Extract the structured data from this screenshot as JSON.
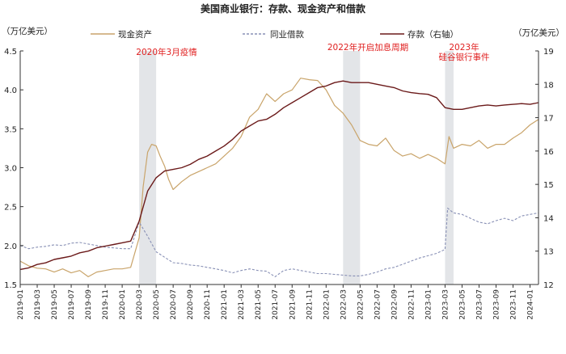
{
  "chart_data": {
    "type": "line",
    "title": "美国商业银行：存款、现金资产和借款",
    "left_unit": "（万亿美元）",
    "right_unit": "（万亿美元）",
    "left_axis": {
      "ylim": [
        1.5,
        4.5
      ],
      "ticks": [
        "1.5",
        "2.0",
        "2.5",
        "3.0",
        "3.5",
        "4.0",
        "4.5"
      ]
    },
    "right_axis": {
      "ylim": [
        12,
        19
      ],
      "ticks": [
        "12",
        "13",
        "14",
        "15",
        "16",
        "17",
        "18",
        "19"
      ]
    },
    "x_range": [
      "2019-01",
      "2024-02"
    ],
    "x_ticks": [
      "2019-01",
      "2019-03",
      "2019-05",
      "2019-07",
      "2019-09",
      "2019-11",
      "2020-01",
      "2020-03",
      "2020-05",
      "2020-07",
      "2020-09",
      "2020-11",
      "2021-01",
      "2021-03",
      "2021-05",
      "2021-07",
      "2021-09",
      "2021-11",
      "2022-01",
      "2022-03",
      "2022-05",
      "2022-07",
      "2022-09",
      "2022-11",
      "2023-01",
      "2023-03",
      "2023-05",
      "2023-07",
      "2023-09",
      "2023-11",
      "2024-01"
    ],
    "colors": {
      "cash": "#c9a46a",
      "interbank": "#8890b5",
      "deposits": "#6b1a1a",
      "annotation": "#e02020",
      "shade": "#e3e5e8"
    },
    "legend": [
      {
        "name": "现金资产",
        "color": "#c9a46a",
        "style": "solid"
      },
      {
        "name": "同业借款",
        "color": "#8890b5",
        "style": "dashed"
      },
      {
        "name": "存款（右轴）",
        "color": "#6b1a1a",
        "style": "solid"
      }
    ],
    "shaded_periods": [
      {
        "from": "2020-03",
        "to": "2020-05",
        "label": "2020年3月疫情"
      },
      {
        "from": "2022-03",
        "to": "2022-05",
        "label": "2022年开启加息周期"
      },
      {
        "from": "2023-03",
        "to": "2023-04",
        "label": "2023年硅谷银行事件",
        "label_lines": [
          "2023年",
          "硅谷银行事件"
        ]
      }
    ],
    "series": [
      {
        "name": "现金资产",
        "axis": "left",
        "points": [
          [
            "2019-01",
            1.8
          ],
          [
            "2019-02",
            1.74
          ],
          [
            "2019-03",
            1.71
          ],
          [
            "2019-04",
            1.7
          ],
          [
            "2019-05",
            1.66
          ],
          [
            "2019-06",
            1.7
          ],
          [
            "2019-07",
            1.65
          ],
          [
            "2019-08",
            1.68
          ],
          [
            "2019-09",
            1.6
          ],
          [
            "2019-10",
            1.66
          ],
          [
            "2019-11",
            1.68
          ],
          [
            "2019-12",
            1.7
          ],
          [
            "2020-01",
            1.7
          ],
          [
            "2020-02",
            1.72
          ],
          [
            "2020-03",
            2.1
          ],
          [
            "2020-03-15",
            2.75
          ],
          [
            "2020-04",
            3.2
          ],
          [
            "2020-04-15",
            3.3
          ],
          [
            "2020-05",
            3.28
          ],
          [
            "2020-05-15",
            3.15
          ],
          [
            "2020-06",
            3.02
          ],
          [
            "2020-06-15",
            2.85
          ],
          [
            "2020-07",
            2.72
          ],
          [
            "2020-08",
            2.82
          ],
          [
            "2020-09",
            2.9
          ],
          [
            "2020-10",
            2.95
          ],
          [
            "2020-11",
            3.0
          ],
          [
            "2020-12",
            3.05
          ],
          [
            "2021-01",
            3.15
          ],
          [
            "2021-02",
            3.25
          ],
          [
            "2021-03",
            3.4
          ],
          [
            "2021-04",
            3.65
          ],
          [
            "2021-05",
            3.75
          ],
          [
            "2021-06",
            3.95
          ],
          [
            "2021-07",
            3.85
          ],
          [
            "2021-08",
            3.95
          ],
          [
            "2021-09",
            4.0
          ],
          [
            "2021-10",
            4.15
          ],
          [
            "2021-11",
            4.13
          ],
          [
            "2021-12",
            4.12
          ],
          [
            "2022-01",
            4.0
          ],
          [
            "2022-02",
            3.8
          ],
          [
            "2022-03",
            3.7
          ],
          [
            "2022-04",
            3.55
          ],
          [
            "2022-05",
            3.35
          ],
          [
            "2022-06",
            3.3
          ],
          [
            "2022-07",
            3.28
          ],
          [
            "2022-08",
            3.38
          ],
          [
            "2022-09",
            3.22
          ],
          [
            "2022-10",
            3.15
          ],
          [
            "2022-11",
            3.18
          ],
          [
            "2022-12",
            3.12
          ],
          [
            "2023-01",
            3.17
          ],
          [
            "2023-02",
            3.12
          ],
          [
            "2023-03",
            3.05
          ],
          [
            "2023-03-15",
            3.4
          ],
          [
            "2023-04",
            3.25
          ],
          [
            "2023-05",
            3.3
          ],
          [
            "2023-06",
            3.28
          ],
          [
            "2023-07",
            3.35
          ],
          [
            "2023-08",
            3.25
          ],
          [
            "2023-09",
            3.3
          ],
          [
            "2023-10",
            3.3
          ],
          [
            "2023-11",
            3.38
          ],
          [
            "2023-12",
            3.45
          ],
          [
            "2024-01",
            3.55
          ],
          [
            "2024-02",
            3.62
          ]
        ]
      },
      {
        "name": "同业借款",
        "axis": "left",
        "points": [
          [
            "2019-01",
            2.0
          ],
          [
            "2019-02",
            1.96
          ],
          [
            "2019-03",
            1.98
          ],
          [
            "2019-04",
            1.99
          ],
          [
            "2019-05",
            2.01
          ],
          [
            "2019-06",
            2.0
          ],
          [
            "2019-07",
            2.03
          ],
          [
            "2019-08",
            2.04
          ],
          [
            "2019-09",
            2.02
          ],
          [
            "2019-10",
            2.0
          ],
          [
            "2019-11",
            1.98
          ],
          [
            "2019-12",
            1.97
          ],
          [
            "2020-01",
            1.96
          ],
          [
            "2020-02",
            1.96
          ],
          [
            "2020-03",
            2.3
          ],
          [
            "2020-04",
            2.12
          ],
          [
            "2020-05",
            1.92
          ],
          [
            "2020-06",
            1.85
          ],
          [
            "2020-07",
            1.78
          ],
          [
            "2020-08",
            1.77
          ],
          [
            "2020-09",
            1.75
          ],
          [
            "2020-10",
            1.74
          ],
          [
            "2020-11",
            1.72
          ],
          [
            "2020-12",
            1.7
          ],
          [
            "2021-01",
            1.68
          ],
          [
            "2021-02",
            1.65
          ],
          [
            "2021-03",
            1.68
          ],
          [
            "2021-04",
            1.7
          ],
          [
            "2021-05",
            1.68
          ],
          [
            "2021-06",
            1.67
          ],
          [
            "2021-07",
            1.6
          ],
          [
            "2021-08",
            1.68
          ],
          [
            "2021-09",
            1.7
          ],
          [
            "2021-10",
            1.68
          ],
          [
            "2021-11",
            1.66
          ],
          [
            "2021-12",
            1.64
          ],
          [
            "2022-01",
            1.64
          ],
          [
            "2022-02",
            1.63
          ],
          [
            "2022-03",
            1.62
          ],
          [
            "2022-04",
            1.61
          ],
          [
            "2022-05",
            1.61
          ],
          [
            "2022-06",
            1.63
          ],
          [
            "2022-07",
            1.66
          ],
          [
            "2022-08",
            1.7
          ],
          [
            "2022-09",
            1.72
          ],
          [
            "2022-10",
            1.76
          ],
          [
            "2022-11",
            1.8
          ],
          [
            "2022-12",
            1.84
          ],
          [
            "2023-01",
            1.87
          ],
          [
            "2023-02",
            1.9
          ],
          [
            "2023-03",
            1.95
          ],
          [
            "2023-03-10",
            2.48
          ],
          [
            "2023-04",
            2.42
          ],
          [
            "2023-05",
            2.4
          ],
          [
            "2023-06",
            2.35
          ],
          [
            "2023-07",
            2.3
          ],
          [
            "2023-08",
            2.28
          ],
          [
            "2023-09",
            2.32
          ],
          [
            "2023-10",
            2.35
          ],
          [
            "2023-11",
            2.32
          ],
          [
            "2023-12",
            2.38
          ],
          [
            "2024-01",
            2.4
          ],
          [
            "2024-02",
            2.42
          ]
        ]
      },
      {
        "name": "存款（右轴）",
        "axis": "right",
        "points": [
          [
            "2019-01",
            12.45
          ],
          [
            "2019-02",
            12.5
          ],
          [
            "2019-03",
            12.6
          ],
          [
            "2019-04",
            12.65
          ],
          [
            "2019-05",
            12.75
          ],
          [
            "2019-06",
            12.8
          ],
          [
            "2019-07",
            12.85
          ],
          [
            "2019-08",
            12.95
          ],
          [
            "2019-09",
            13.0
          ],
          [
            "2019-10",
            13.1
          ],
          [
            "2019-11",
            13.15
          ],
          [
            "2019-12",
            13.2
          ],
          [
            "2020-01",
            13.25
          ],
          [
            "2020-02",
            13.3
          ],
          [
            "2020-03",
            13.9
          ],
          [
            "2020-04",
            14.8
          ],
          [
            "2020-05",
            15.2
          ],
          [
            "2020-06",
            15.4
          ],
          [
            "2020-07",
            15.45
          ],
          [
            "2020-08",
            15.5
          ],
          [
            "2020-09",
            15.6
          ],
          [
            "2020-10",
            15.75
          ],
          [
            "2020-11",
            15.85
          ],
          [
            "2020-12",
            16.0
          ],
          [
            "2021-01",
            16.15
          ],
          [
            "2021-02",
            16.35
          ],
          [
            "2021-03",
            16.6
          ],
          [
            "2021-04",
            16.75
          ],
          [
            "2021-05",
            16.9
          ],
          [
            "2021-06",
            16.95
          ],
          [
            "2021-07",
            17.1
          ],
          [
            "2021-08",
            17.3
          ],
          [
            "2021-09",
            17.45
          ],
          [
            "2021-10",
            17.6
          ],
          [
            "2021-11",
            17.75
          ],
          [
            "2021-12",
            17.9
          ],
          [
            "2022-01",
            17.95
          ],
          [
            "2022-02",
            18.05
          ],
          [
            "2022-03",
            18.1
          ],
          [
            "2022-04",
            18.05
          ],
          [
            "2022-05",
            18.05
          ],
          [
            "2022-06",
            18.05
          ],
          [
            "2022-07",
            18.0
          ],
          [
            "2022-08",
            17.95
          ],
          [
            "2022-09",
            17.9
          ],
          [
            "2022-10",
            17.8
          ],
          [
            "2022-11",
            17.75
          ],
          [
            "2022-12",
            17.72
          ],
          [
            "2023-01",
            17.7
          ],
          [
            "2023-02",
            17.6
          ],
          [
            "2023-03",
            17.3
          ],
          [
            "2023-04",
            17.25
          ],
          [
            "2023-05",
            17.25
          ],
          [
            "2023-06",
            17.3
          ],
          [
            "2023-07",
            17.35
          ],
          [
            "2023-08",
            17.38
          ],
          [
            "2023-09",
            17.35
          ],
          [
            "2023-10",
            17.38
          ],
          [
            "2023-11",
            17.4
          ],
          [
            "2023-12",
            17.42
          ],
          [
            "2024-01",
            17.4
          ],
          [
            "2024-02",
            17.45
          ]
        ]
      }
    ]
  }
}
